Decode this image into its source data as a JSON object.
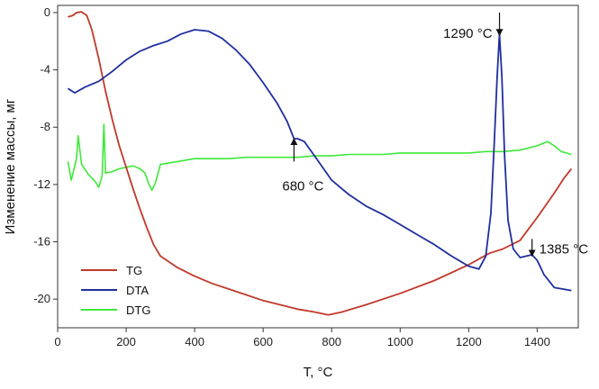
{
  "chart_data": {
    "type": "line",
    "title": "",
    "xlabel": "T, °C",
    "ylabel": "Изменение массы, мг",
    "xlim": [
      0,
      1520
    ],
    "ylim": [
      -22,
      0.5
    ],
    "xticks": [
      0,
      200,
      400,
      600,
      800,
      1000,
      1200,
      1400
    ],
    "yticks": [
      0,
      -4,
      -8,
      -12,
      -16,
      -20
    ],
    "xtick_labels": [
      "0",
      "200",
      "400",
      "600",
      "800",
      "1000",
      "1200",
      "1400"
    ],
    "ytick_labels": [
      "0",
      "-4",
      "-8",
      "-12",
      "-16",
      "-20"
    ],
    "legend_position": "bottom-left",
    "series": [
      {
        "name": "TG",
        "color": "#c0392b",
        "points": [
          [
            30,
            -0.3
          ],
          [
            45,
            -0.2
          ],
          [
            55,
            0.0
          ],
          [
            70,
            0.05
          ],
          [
            85,
            -0.2
          ],
          [
            100,
            -1.2
          ],
          [
            120,
            -3.2
          ],
          [
            140,
            -5.5
          ],
          [
            160,
            -7.5
          ],
          [
            180,
            -9.3
          ],
          [
            200,
            -10.8
          ],
          [
            220,
            -12.3
          ],
          [
            240,
            -13.7
          ],
          [
            260,
            -15.0
          ],
          [
            280,
            -16.2
          ],
          [
            300,
            -17.0
          ],
          [
            350,
            -17.8
          ],
          [
            400,
            -18.4
          ],
          [
            450,
            -18.9
          ],
          [
            500,
            -19.3
          ],
          [
            550,
            -19.7
          ],
          [
            600,
            -20.1
          ],
          [
            650,
            -20.4
          ],
          [
            700,
            -20.7
          ],
          [
            750,
            -20.9
          ],
          [
            790,
            -21.1
          ],
          [
            830,
            -20.9
          ],
          [
            900,
            -20.4
          ],
          [
            1000,
            -19.6
          ],
          [
            1100,
            -18.7
          ],
          [
            1200,
            -17.6
          ],
          [
            1260,
            -16.8
          ],
          [
            1300,
            -16.5
          ],
          [
            1350,
            -15.9
          ],
          [
            1400,
            -14.3
          ],
          [
            1450,
            -12.6
          ],
          [
            1480,
            -11.5
          ],
          [
            1500,
            -10.9
          ]
        ]
      },
      {
        "name": "DTA",
        "color": "#1f2f9e",
        "points": [
          [
            30,
            -5.3
          ],
          [
            50,
            -5.6
          ],
          [
            80,
            -5.2
          ],
          [
            120,
            -4.8
          ],
          [
            160,
            -4.1
          ],
          [
            200,
            -3.3
          ],
          [
            240,
            -2.7
          ],
          [
            280,
            -2.3
          ],
          [
            320,
            -2.0
          ],
          [
            360,
            -1.5
          ],
          [
            400,
            -1.2
          ],
          [
            440,
            -1.3
          ],
          [
            480,
            -1.8
          ],
          [
            520,
            -2.6
          ],
          [
            560,
            -3.6
          ],
          [
            600,
            -4.9
          ],
          [
            640,
            -6.3
          ],
          [
            670,
            -7.6
          ],
          [
            690,
            -8.8
          ],
          [
            700,
            -8.8
          ],
          [
            720,
            -9.0
          ],
          [
            750,
            -10.0
          ],
          [
            800,
            -11.7
          ],
          [
            850,
            -12.7
          ],
          [
            900,
            -13.5
          ],
          [
            950,
            -14.1
          ],
          [
            1000,
            -14.8
          ],
          [
            1050,
            -15.5
          ],
          [
            1100,
            -16.2
          ],
          [
            1150,
            -17.0
          ],
          [
            1200,
            -17.7
          ],
          [
            1230,
            -17.9
          ],
          [
            1250,
            -17.0
          ],
          [
            1265,
            -14.0
          ],
          [
            1275,
            -9.0
          ],
          [
            1283,
            -4.5
          ],
          [
            1290,
            -1.5
          ],
          [
            1297,
            -4.5
          ],
          [
            1305,
            -10.0
          ],
          [
            1315,
            -14.5
          ],
          [
            1330,
            -16.5
          ],
          [
            1350,
            -17.1
          ],
          [
            1385,
            -16.9
          ],
          [
            1400,
            -17.3
          ],
          [
            1420,
            -18.3
          ],
          [
            1450,
            -19.2
          ],
          [
            1500,
            -19.4
          ]
        ]
      },
      {
        "name": "DTG",
        "color": "#3ee83a",
        "points": [
          [
            30,
            -10.4
          ],
          [
            40,
            -11.7
          ],
          [
            55,
            -10.2
          ],
          [
            60,
            -8.6
          ],
          [
            70,
            -10.6
          ],
          [
            90,
            -11.3
          ],
          [
            110,
            -11.8
          ],
          [
            120,
            -12.2
          ],
          [
            130,
            -11.4
          ],
          [
            135,
            -7.8
          ],
          [
            140,
            -11.2
          ],
          [
            160,
            -11.1
          ],
          [
            180,
            -10.9
          ],
          [
            200,
            -10.8
          ],
          [
            220,
            -10.7
          ],
          [
            240,
            -10.9
          ],
          [
            255,
            -11.2
          ],
          [
            265,
            -11.9
          ],
          [
            275,
            -12.4
          ],
          [
            285,
            -11.9
          ],
          [
            300,
            -10.6
          ],
          [
            350,
            -10.4
          ],
          [
            400,
            -10.2
          ],
          [
            450,
            -10.2
          ],
          [
            500,
            -10.2
          ],
          [
            550,
            -10.1
          ],
          [
            600,
            -10.1
          ],
          [
            650,
            -10.1
          ],
          [
            700,
            -10.1
          ],
          [
            750,
            -10.0
          ],
          [
            800,
            -10.0
          ],
          [
            850,
            -9.9
          ],
          [
            900,
            -9.9
          ],
          [
            950,
            -9.9
          ],
          [
            1000,
            -9.8
          ],
          [
            1050,
            -9.8
          ],
          [
            1100,
            -9.8
          ],
          [
            1150,
            -9.8
          ],
          [
            1200,
            -9.8
          ],
          [
            1250,
            -9.7
          ],
          [
            1300,
            -9.7
          ],
          [
            1350,
            -9.6
          ],
          [
            1400,
            -9.3
          ],
          [
            1430,
            -9.0
          ],
          [
            1450,
            -9.3
          ],
          [
            1470,
            -9.7
          ],
          [
            1500,
            -9.9
          ]
        ]
      }
    ],
    "annotations": [
      {
        "text": "1290 °C",
        "arrow_x": 1290,
        "arrow_from_y": 0.0,
        "arrow_to_y": -1.4,
        "direction": "down"
      },
      {
        "text": "680 °C",
        "arrow_x": 690,
        "arrow_from_y": -10.4,
        "arrow_to_y": -9.0,
        "direction": "up"
      },
      {
        "text": "1385 °C",
        "arrow_x": 1385,
        "arrow_from_y": -15.8,
        "arrow_to_y": -16.8,
        "direction": "down"
      }
    ]
  }
}
